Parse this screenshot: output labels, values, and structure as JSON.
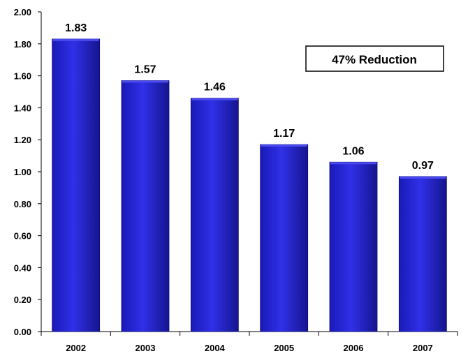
{
  "chart_data": {
    "type": "bar",
    "categories": [
      "2002",
      "2003",
      "2004",
      "2005",
      "2006",
      "2007"
    ],
    "values": [
      1.83,
      1.57,
      1.46,
      1.17,
      1.06,
      0.97
    ],
    "data_labels": [
      "1.83",
      "1.57",
      "1.46",
      "1.17",
      "1.06",
      "0.97"
    ],
    "y_ticks": [
      "0.00",
      "0.20",
      "0.40",
      "0.60",
      "0.80",
      "1.00",
      "1.20",
      "1.40",
      "1.60",
      "1.80",
      "2.00"
    ],
    "ylim": [
      0,
      2
    ],
    "grid": false,
    "annotation": "47% Reduction",
    "colors": {
      "bar": "#2424d8",
      "bar_dark": "#0b0b7a",
      "bar_light": "#4a4af0",
      "axis": "#000000"
    }
  }
}
